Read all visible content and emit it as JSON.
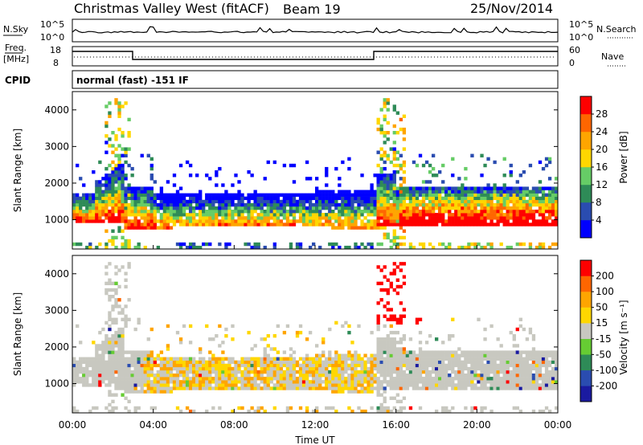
{
  "header": {
    "station": "Christmas Valley West (fitACF)",
    "beam": "Beam 19",
    "date": "25/Nov/2014"
  },
  "top_panels": {
    "nsky_label": "N.Sky",
    "nsky_ticks": [
      "10^5",
      "10^0"
    ],
    "nsearch_label": "N.Search",
    "nsearch_ticks": [
      "10^5",
      "10^0"
    ],
    "freq_label_1": "Freq.",
    "freq_label_2": "[MHz]",
    "freq_ticks": [
      "18",
      "8"
    ],
    "nave_label": "Nave",
    "nave_ticks": [
      "60",
      "0"
    ],
    "cpid_label": "CPID",
    "cpid_text": "normal (fast) -151 IF"
  },
  "chart_data": [
    {
      "type": "heatmap",
      "name": "power",
      "ylabel": "Slant Range [km]",
      "ylim": [
        200,
        4500
      ],
      "yticks": [
        "1000",
        "2000",
        "3000",
        "4000"
      ],
      "colorbar_label": "Power [dB]",
      "colorbar_ticks": [
        "4",
        "8",
        "12",
        "16",
        "20",
        "24",
        "28"
      ],
      "colors": [
        "#0000ff",
        "#2a4cb0",
        "#2e8b57",
        "#66cc66",
        "#ffd700",
        "#ffa500",
        "#ff6600",
        "#ff0000"
      ]
    },
    {
      "type": "heatmap",
      "name": "velocity",
      "ylabel": "Slant Range [km]",
      "ylim": [
        200,
        4500
      ],
      "yticks": [
        "1000",
        "2000",
        "3000",
        "4000"
      ],
      "colorbar_label": "Velocity [m s⁻¹]",
      "colorbar_ticks": [
        "200",
        "100",
        "50",
        "15",
        "-15",
        "-50",
        "-100",
        "-200"
      ],
      "colors": [
        "#1a1aa0",
        "#2a4cb0",
        "#2e8b57",
        "#66cc33",
        "#c8c8c0",
        "#ffd700",
        "#ffa500",
        "#ff6600",
        "#ff0000"
      ]
    }
  ],
  "x_axis": {
    "label": "Time UT",
    "ticks": [
      "00:00",
      "04:00",
      "08:00",
      "12:00",
      "16:00",
      "20:00",
      "00:00"
    ]
  }
}
